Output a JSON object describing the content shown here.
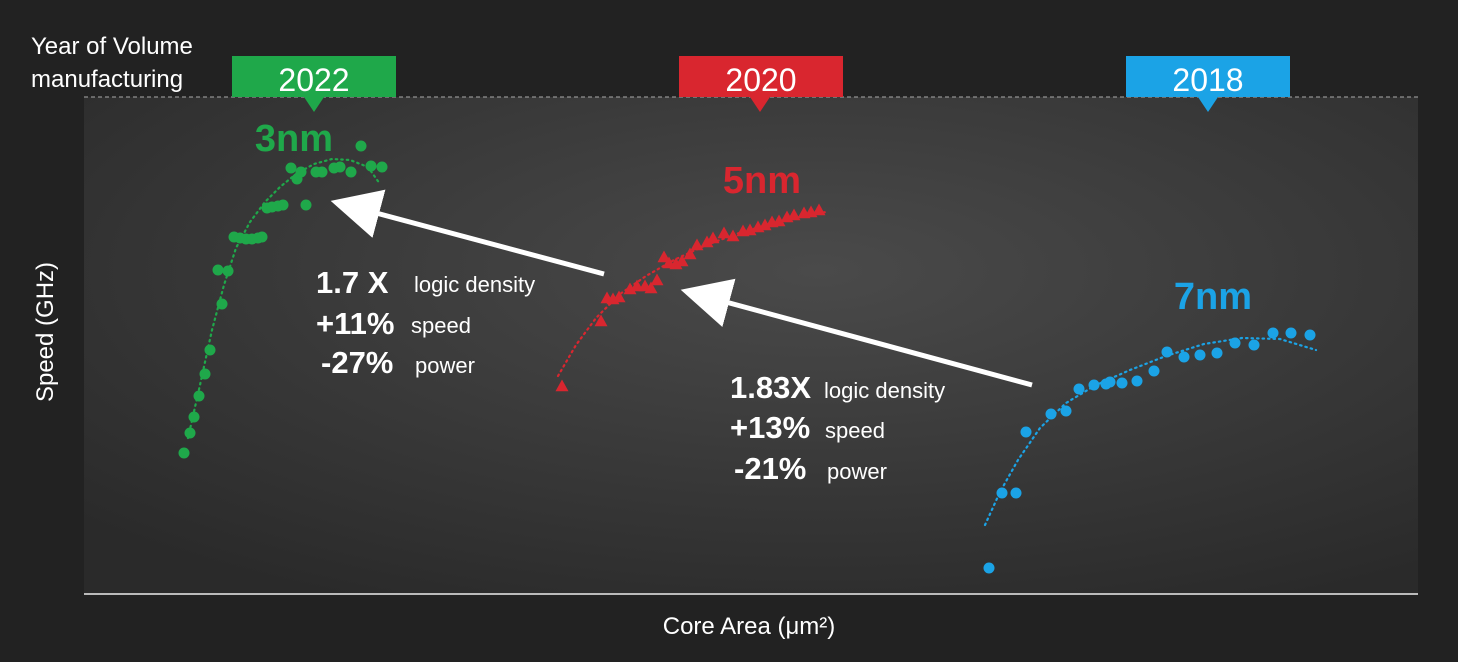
{
  "chart_data": {
    "type": "scatter",
    "title": "",
    "xlabel": "Core Area (μm²)",
    "ylabel": "Speed (GHz)",
    "header_label": "Year of Volume manufacturing",
    "header_lines": [
      "Year of Volume",
      "manufacturing"
    ],
    "grid": false,
    "axis_ticks": "none",
    "series": [
      {
        "name": "3nm",
        "year": "2022",
        "color": "#1fa84a",
        "marker": "circle",
        "points": [
          [
            184,
            453
          ],
          [
            190,
            433
          ],
          [
            194,
            417
          ],
          [
            199,
            396
          ],
          [
            205,
            374
          ],
          [
            210,
            350
          ],
          [
            222,
            304
          ],
          [
            218,
            270
          ],
          [
            228,
            271
          ],
          [
            234,
            237
          ],
          [
            240,
            238
          ],
          [
            246,
            239
          ],
          [
            252,
            239
          ],
          [
            258,
            238
          ],
          [
            262,
            237
          ],
          [
            267,
            208
          ],
          [
            272,
            207
          ],
          [
            278,
            206
          ],
          [
            283,
            205
          ],
          [
            306,
            205
          ],
          [
            291,
            168
          ],
          [
            297,
            179
          ],
          [
            301,
            172
          ],
          [
            316,
            172
          ],
          [
            322,
            172
          ],
          [
            334,
            168
          ],
          [
            340,
            167
          ],
          [
            351,
            172
          ],
          [
            361,
            146
          ],
          [
            371,
            166
          ],
          [
            382,
            167
          ]
        ],
        "trend": [
          [
            188,
            438
          ],
          [
            200,
            385
          ],
          [
            212,
            330
          ],
          [
            224,
            285
          ],
          [
            236,
            248
          ],
          [
            250,
            222
          ],
          [
            265,
            202
          ],
          [
            280,
            187
          ],
          [
            296,
            174
          ],
          [
            314,
            164
          ],
          [
            332,
            159
          ],
          [
            350,
            160
          ],
          [
            368,
            167
          ],
          [
            380,
            184
          ]
        ]
      },
      {
        "name": "5nm",
        "year": "2020",
        "color": "#d9262f",
        "marker": "triangle",
        "points": [
          [
            562,
            386
          ],
          [
            601,
            321
          ],
          [
            607,
            298
          ],
          [
            613,
            299
          ],
          [
            619,
            297
          ],
          [
            630,
            289
          ],
          [
            637,
            286
          ],
          [
            645,
            286
          ],
          [
            651,
            288
          ],
          [
            657,
            280
          ],
          [
            664,
            257
          ],
          [
            669,
            263
          ],
          [
            676,
            264
          ],
          [
            682,
            261
          ],
          [
            690,
            254
          ],
          [
            697,
            245
          ],
          [
            707,
            242
          ],
          [
            713,
            238
          ],
          [
            724,
            233
          ],
          [
            733,
            236
          ],
          [
            743,
            231
          ],
          [
            750,
            230
          ],
          [
            758,
            227
          ],
          [
            765,
            225
          ],
          [
            772,
            222
          ],
          [
            779,
            221
          ],
          [
            787,
            217
          ],
          [
            794,
            215
          ],
          [
            804,
            213
          ],
          [
            811,
            212
          ],
          [
            819,
            210
          ]
        ],
        "trend": [
          [
            558,
            376
          ],
          [
            576,
            345
          ],
          [
            596,
            318
          ],
          [
            620,
            294
          ],
          [
            646,
            276
          ],
          [
            674,
            260
          ],
          [
            704,
            246
          ],
          [
            736,
            234
          ],
          [
            770,
            224
          ],
          [
            802,
            216
          ],
          [
            826,
            212
          ]
        ]
      },
      {
        "name": "7nm",
        "year": "2018",
        "color": "#1ba3e6",
        "marker": "circle",
        "points": [
          [
            989,
            568
          ],
          [
            1002,
            493
          ],
          [
            1016,
            493
          ],
          [
            1026,
            432
          ],
          [
            1051,
            414
          ],
          [
            1066,
            411
          ],
          [
            1079,
            389
          ],
          [
            1094,
            385
          ],
          [
            1106,
            384
          ],
          [
            1110,
            382
          ],
          [
            1122,
            383
          ],
          [
            1137,
            381
          ],
          [
            1154,
            371
          ],
          [
            1167,
            352
          ],
          [
            1184,
            357
          ],
          [
            1200,
            355
          ],
          [
            1217,
            353
          ],
          [
            1235,
            343
          ],
          [
            1254,
            345
          ],
          [
            1273,
            333
          ],
          [
            1291,
            333
          ],
          [
            1310,
            335
          ]
        ],
        "trend": [
          [
            985,
            525
          ],
          [
            1000,
            492
          ],
          [
            1018,
            460
          ],
          [
            1040,
            428
          ],
          [
            1066,
            403
          ],
          [
            1096,
            385
          ],
          [
            1130,
            370
          ],
          [
            1166,
            356
          ],
          [
            1204,
            344
          ],
          [
            1242,
            338
          ],
          [
            1280,
            339
          ],
          [
            1316,
            350
          ]
        ]
      }
    ],
    "annotations": [
      {
        "name": "3nm-vs-5nm",
        "lines": [
          {
            "value": "1.7 X",
            "label": "logic density"
          },
          {
            "value": "+11%",
            "label": "speed"
          },
          {
            "value": "-27%",
            "label": "power"
          }
        ]
      },
      {
        "name": "5nm-vs-7nm",
        "lines": [
          {
            "value": "1.83X",
            "label": "logic density"
          },
          {
            "value": "+13%",
            "label": "speed"
          },
          {
            "value": "-21%",
            "label": "power"
          }
        ]
      }
    ]
  }
}
